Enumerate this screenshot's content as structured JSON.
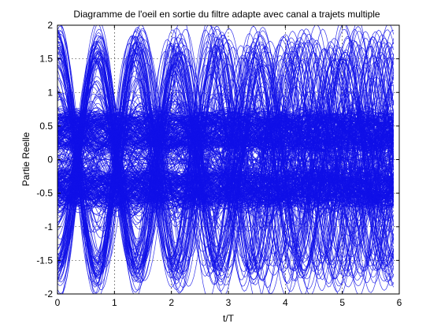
{
  "chart_data": {
    "type": "line",
    "title": "Diagramme de l'oeil en sortie du filtre adapte avec canal a trajets multiple",
    "xlabel": "t/T",
    "ylabel": "Partie Reelle",
    "xlim": [
      0,
      6
    ],
    "ylim": [
      -2,
      2
    ],
    "xticks": [
      "0",
      "1",
      "2",
      "3",
      "4",
      "5",
      "6"
    ],
    "yticks": [
      "2",
      "1.5",
      "1",
      "0.5",
      "0",
      "-0.5",
      "-1",
      "-1.5",
      "-2"
    ],
    "grid": true,
    "data_extent_x": [
      0,
      5.9
    ],
    "series_color": "#1010e8",
    "period": 1.4,
    "envelope_amplitude": [
      1.0,
      1.55,
      1.75,
      1.9
    ],
    "dense_band_centers": [
      0.42,
      -0.42
    ],
    "dense_band_halfwidth": 0.3
  }
}
